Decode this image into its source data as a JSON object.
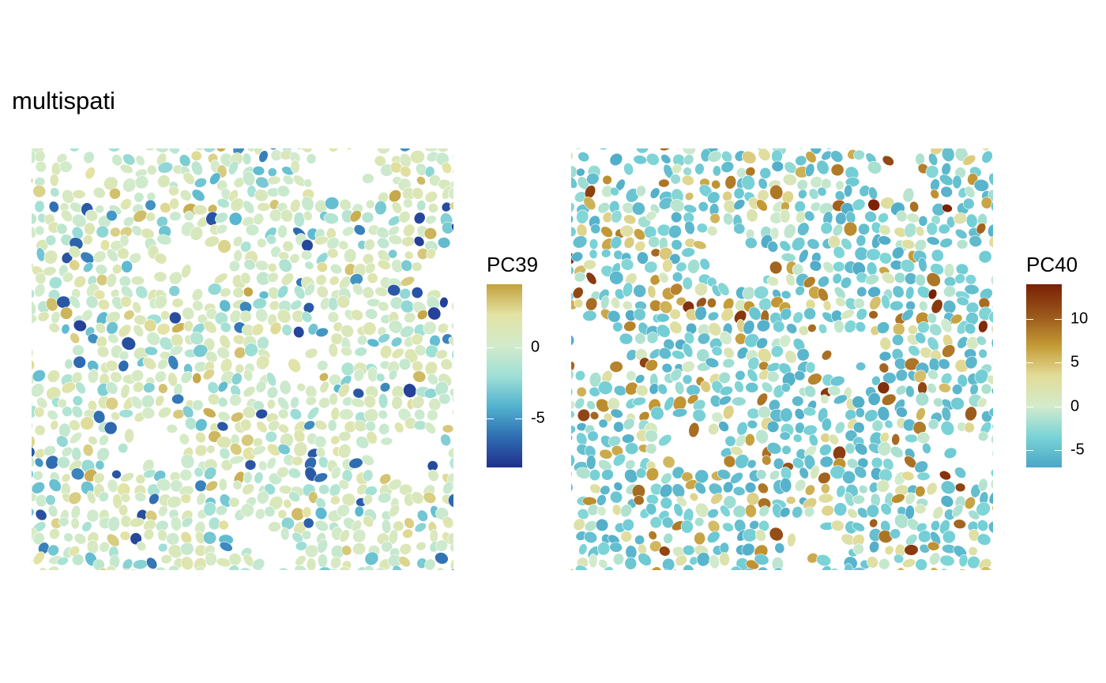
{
  "title": "multispati",
  "chart_data": [
    {
      "type": "heatmap",
      "subtype": "spatial cell segmentation map",
      "fill_variable": "PC39",
      "legend": {
        "title": "PC39",
        "range": [
          -8.5,
          4.5
        ],
        "ticks": [
          0,
          -5
        ],
        "tick_labels": [
          "0",
          "-5"
        ],
        "colors": [
          "#1f2f8c",
          "#2f6db2",
          "#52b3cf",
          "#9fe0d6",
          "#d2ebcc",
          "#e3e3a4",
          "#c3a13c"
        ],
        "placement": "right"
      },
      "axes": "none",
      "grid": false
    },
    {
      "type": "heatmap",
      "subtype": "spatial cell segmentation map",
      "fill_variable": "PC40",
      "legend": {
        "title": "PC40",
        "range": [
          -7,
          14
        ],
        "ticks": [
          10,
          5,
          0,
          -5
        ],
        "tick_labels": [
          "10",
          "5",
          "0",
          "-5"
        ],
        "colors": [
          "#4aa6c6",
          "#79d3d7",
          "#d3ebcc",
          "#e2dc98",
          "#c49a35",
          "#99561a",
          "#7a2006"
        ],
        "placement": "right"
      },
      "axes": "none",
      "grid": false
    }
  ]
}
